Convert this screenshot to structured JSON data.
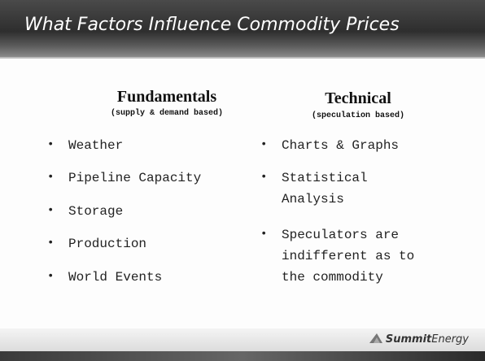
{
  "header": {
    "title": "What Factors Influence Commodity Prices"
  },
  "columns": [
    {
      "heading": "Fundamentals",
      "subheading": "(supply & demand based)",
      "items": [
        "Weather",
        "Pipeline Capacity",
        "Storage",
        "Production",
        "World Events"
      ]
    },
    {
      "heading": "Technical",
      "subheading": "(speculation based)",
      "items": [
        "Charts & Graphs",
        "Statistical Analysis",
        "Speculators are indifferent as to the commodity"
      ]
    }
  ],
  "footer": {
    "logo_bold": "Summit",
    "logo_light": "Energy"
  }
}
